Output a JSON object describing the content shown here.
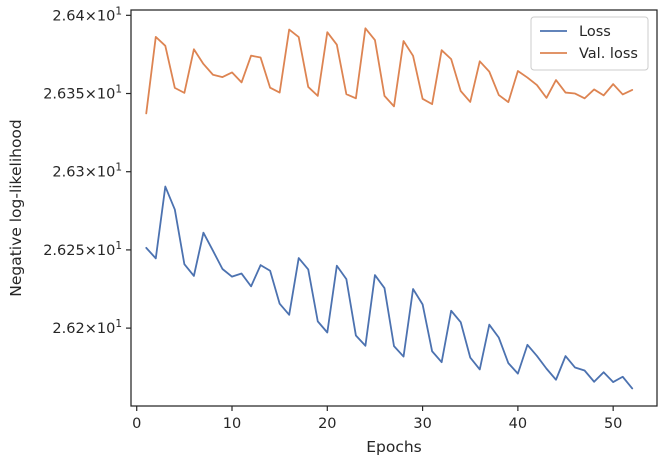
{
  "chart_data": {
    "type": "line",
    "title": "",
    "xlabel": "Epochs",
    "ylabel": "Negative log-likelihood",
    "xlim": [
      -0.6,
      54.6
    ],
    "ylim": [
      26.1502,
      26.4034
    ],
    "x_ticks": [
      0,
      10,
      20,
      30,
      40,
      50
    ],
    "y_ticks": [
      {
        "value": 26.2,
        "mantissa": "2.62",
        "times": "×",
        "base": "10",
        "exp": "1"
      },
      {
        "value": 26.25,
        "mantissa": "2.625",
        "times": "×",
        "base": "10",
        "exp": "1"
      },
      {
        "value": 26.3,
        "mantissa": "2.63",
        "times": "×",
        "base": "10",
        "exp": "1"
      },
      {
        "value": 26.35,
        "mantissa": "2.635",
        "times": "×",
        "base": "10",
        "exp": "1"
      },
      {
        "value": 26.4,
        "mantissa": "2.64",
        "times": "×",
        "base": "10",
        "exp": "1"
      }
    ],
    "grid": false,
    "legend": {
      "position": "top-right"
    },
    "x": [
      1,
      2,
      3,
      4,
      5,
      6,
      7,
      8,
      9,
      10,
      11,
      12,
      13,
      14,
      15,
      16,
      17,
      18,
      19,
      20,
      21,
      22,
      23,
      24,
      25,
      26,
      27,
      28,
      29,
      30,
      31,
      32,
      33,
      34,
      35,
      36,
      37,
      38,
      39,
      40,
      41,
      42,
      43,
      44,
      45,
      46,
      47,
      48,
      49,
      50,
      51,
      52
    ],
    "series": [
      {
        "name": "Loss",
        "color": "#4c72b0",
        "values": [
          26.2513,
          26.2446,
          26.2905,
          26.2758,
          26.2409,
          26.2334,
          26.261,
          26.2495,
          26.2378,
          26.2329,
          26.2349,
          26.2267,
          26.2403,
          26.2367,
          26.2156,
          26.2085,
          26.2448,
          26.2375,
          26.2043,
          26.1972,
          26.2399,
          26.2313,
          26.1953,
          26.1887,
          26.2339,
          26.2256,
          26.1885,
          26.1818,
          26.225,
          26.2152,
          26.1852,
          26.1782,
          26.2111,
          26.2038,
          26.1812,
          26.1736,
          26.2022,
          26.1939,
          26.1776,
          26.1709,
          26.1893,
          26.1822,
          26.1741,
          26.167,
          26.1821,
          26.1748,
          26.1729,
          26.1657,
          26.1718,
          26.1655,
          26.1689,
          26.1614
        ]
      },
      {
        "name": "Val. loss",
        "color": "#dd8452",
        "values": [
          26.3373,
          26.3862,
          26.3805,
          26.3536,
          26.3504,
          26.3783,
          26.3689,
          26.362,
          26.3605,
          26.3635,
          26.3571,
          26.3742,
          26.373,
          26.3537,
          26.3506,
          26.3909,
          26.3861,
          26.3542,
          26.3485,
          26.3892,
          26.3812,
          26.3496,
          26.3469,
          26.3917,
          26.3842,
          26.3485,
          26.3418,
          26.3836,
          26.3741,
          26.3466,
          26.3432,
          26.3777,
          26.372,
          26.3516,
          26.3446,
          26.3706,
          26.364,
          26.349,
          26.3445,
          26.3644,
          26.3602,
          26.3554,
          26.3472,
          26.3586,
          26.3506,
          26.35,
          26.3469,
          26.3526,
          26.3488,
          26.356,
          26.3494,
          26.3523
        ]
      }
    ]
  }
}
